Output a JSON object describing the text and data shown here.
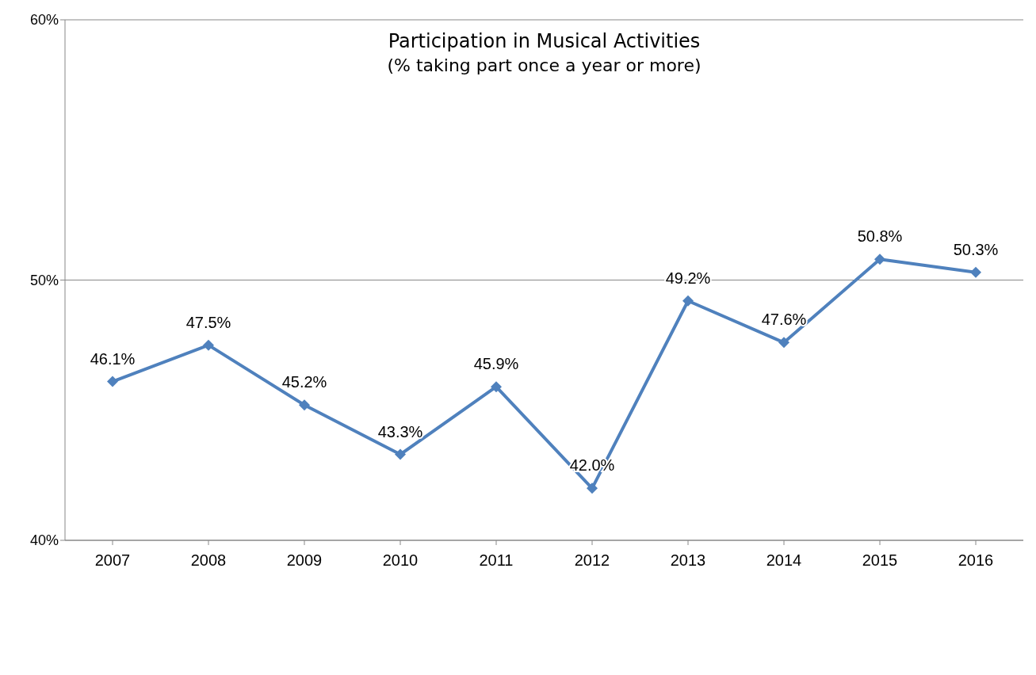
{
  "chart_data": {
    "type": "line",
    "title": "Participation in Musical Activities",
    "subtitle": "(% taking part once a year or more)",
    "categories": [
      "2007",
      "2008",
      "2009",
      "2010",
      "2011",
      "2012",
      "2013",
      "2014",
      "2015",
      "2016"
    ],
    "series": [
      {
        "color": "#4f81bd",
        "values": [
          46.1,
          47.5,
          45.2,
          43.3,
          45.9,
          42.0,
          49.2,
          47.6,
          50.8,
          50.3
        ],
        "value_labels": [
          "46.1%",
          "47.5%",
          "45.2%",
          "43.3%",
          "45.9%",
          "42.0%",
          "49.2%",
          "47.6%",
          "50.8%",
          "50.3%"
        ]
      }
    ],
    "ylim": [
      40,
      60
    ],
    "yticks": [
      {
        "value": 40,
        "label": "40%"
      },
      {
        "value": 50,
        "label": "50%"
      },
      {
        "value": 60,
        "label": "60%"
      }
    ],
    "grid": "y",
    "marker": "diamond",
    "line_style": "solid"
  }
}
